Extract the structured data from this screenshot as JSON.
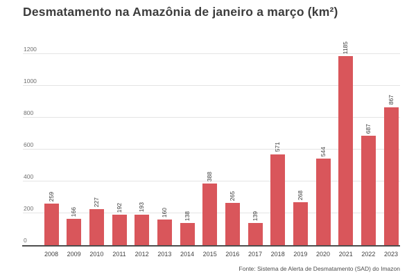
{
  "title": "Desmatamento na Amazônia de janeiro a março (km²)",
  "source": "Fonte: Sistema de Alerta de Desmatamento (SAD) do Imazon",
  "colors": {
    "bar": "#d9565b",
    "grid": "#e4e4e4",
    "axis": "#4d4d4d",
    "title": "#3c3c3c",
    "tick_label": "#6e6e6e",
    "value_label": "#3a3a3a"
  },
  "chart_data": {
    "type": "bar",
    "title": "Desmatamento na Amazônia de janeiro a março (km²)",
    "categories": [
      "2008",
      "2009",
      "2010",
      "2011",
      "2012",
      "2013",
      "2014",
      "2015",
      "2016",
      "2017",
      "2018",
      "2019",
      "2020",
      "2021",
      "2022",
      "2023"
    ],
    "values": [
      259,
      166,
      227,
      192,
      193,
      160,
      138,
      388,
      265,
      139,
      571,
      268,
      544,
      1185,
      687,
      867
    ],
    "xlabel": "",
    "ylabel": "",
    "ylim": [
      0,
      1200
    ],
    "ytick_step": 200,
    "grid": true,
    "legend_position": "none",
    "value_labels": "rotated-90-above-bars",
    "source": "Fonte: Sistema de Alerta de Desmatamento (SAD) do Imazon"
  }
}
